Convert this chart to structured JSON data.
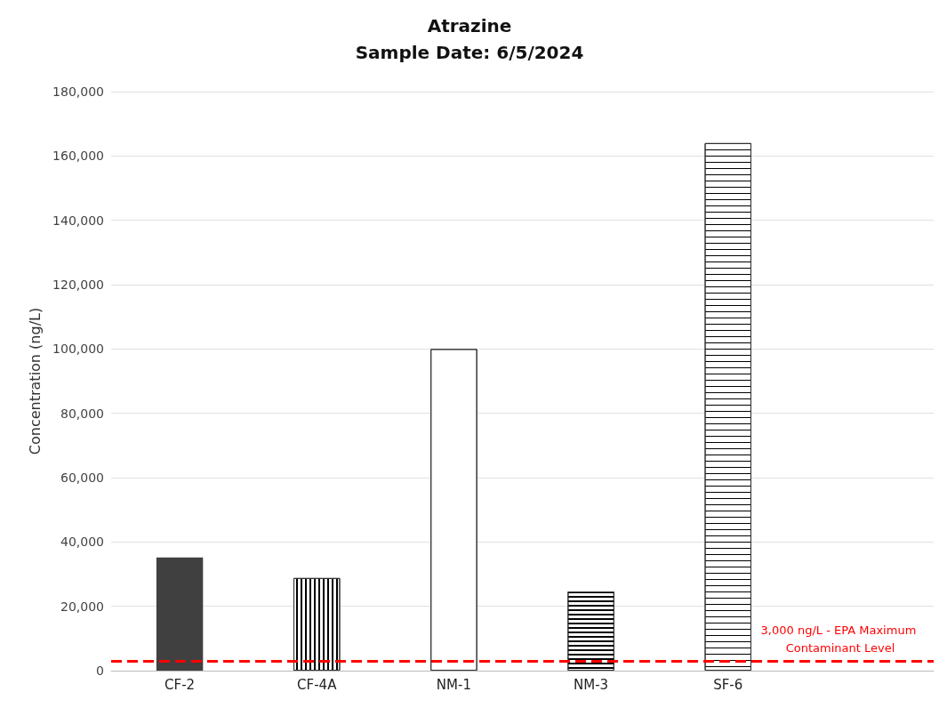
{
  "chart_data": {
    "type": "bar",
    "title": "Atrazine",
    "subtitle": "Sample Date: 6/5/2024",
    "ylabel": "Concentration (ng/L)",
    "categories": [
      "CF-2",
      "CF-4A",
      "NM-1",
      "NM-3",
      "SF-6",
      null
    ],
    "values": [
      35200,
      28800,
      100000,
      24600,
      164000,
      null
    ],
    "colors": [
      "#404040",
      "#ffffff",
      "#ffffff",
      "#ffffff",
      "#ffffff",
      null
    ],
    "ylim": [
      0,
      180000
    ],
    "yticks": [
      0,
      {
        "value": 20000,
        "label": "20,000"
      },
      {
        "value": 40000,
        "label": "40,000"
      },
      {
        "value": 60000,
        "label": "60,000"
      },
      {
        "value": 80000,
        "label": "80,000"
      },
      {
        "value": 100000,
        "label": "100,000"
      },
      {
        "value": 120000,
        "label": "120,000"
      },
      {
        "value": 140000,
        "label": "140,000"
      },
      {
        "value": 160000,
        "label": "160,000"
      },
      {
        "value": 180000,
        "label": "180,000"
      }
    ],
    "grid": "y",
    "ref_lines": [
      {
        "axis": "y",
        "value": 3000,
        "label": "3,000 ng/L - EPA Maximum Contaminant Level",
        "color": "#ff0000",
        "line_style": "dashed"
      }
    ]
  }
}
